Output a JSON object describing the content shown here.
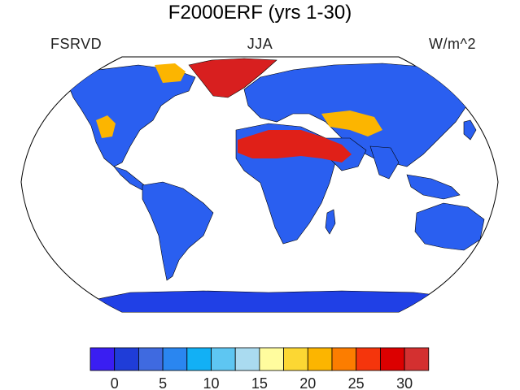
{
  "title": "F2000ERF (yrs 1-30)",
  "left_label": "FSRVD",
  "center_label": "JJA",
  "right_label": "W/m^2",
  "colorbar": {
    "colors": [
      "#3a1ef2",
      "#1f3dd8",
      "#3f6ae0",
      "#2a86f0",
      "#12b0f5",
      "#5ec6f2",
      "#aadbf0",
      "#fffc9e",
      "#fcd733",
      "#fcb500",
      "#fc7d00",
      "#f5350c",
      "#dc0000",
      "#d43030"
    ],
    "tick_labels": [
      "0",
      "5",
      "10",
      "15",
      "20",
      "25",
      "30"
    ]
  },
  "palette": {
    "ocean": "#ffffff",
    "land_base": "#2a5ff0",
    "antarctica": "#2040e6",
    "greenland": "#d81f1f",
    "desert_hot": "#e02018",
    "desert_warm": "#fcb500",
    "coast": "#000000"
  }
}
